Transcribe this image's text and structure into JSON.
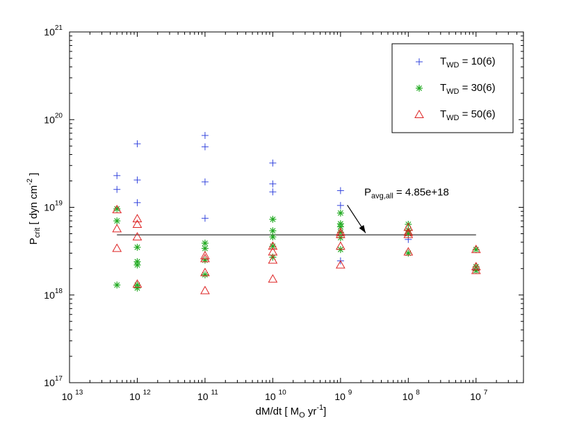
{
  "chart_data": {
    "type": "scatter",
    "xlabel_parts": {
      "pre": "dM/dt [ M",
      "sub": "O",
      "mid": " yr",
      "sup": "-1",
      "post": "]"
    },
    "ylabel_parts": {
      "pre": "P",
      "sub": "crit",
      "mid": " [ dyn cm",
      "sup": "-2",
      "post": " ]"
    },
    "x_axis": {
      "scale": "log",
      "reversed": true,
      "range_exp": [
        -13,
        -6.3
      ],
      "tick_exps": [
        13,
        12,
        11,
        10,
        9,
        8,
        7
      ]
    },
    "y_axis": {
      "scale": "log",
      "range_exp": [
        17,
        21
      ],
      "tick_exps": [
        17,
        18,
        19,
        20,
        21
      ]
    },
    "tick_base": "10",
    "series": [
      {
        "name": "T_WD = 10(6)",
        "label_parts": {
          "pre": "T",
          "sub": "WD",
          "post": " = 10(6)"
        },
        "marker": "plus",
        "color": "#3344dd",
        "points": [
          [
            -12.3,
            2.3e+19
          ],
          [
            -12.3,
            1.6e+19
          ],
          [
            -12,
            5.3e+19
          ],
          [
            -12,
            2.05e+19
          ],
          [
            -12,
            1.13e+19
          ],
          [
            -11,
            6.6e+19
          ],
          [
            -11,
            4.9e+19
          ],
          [
            -11,
            1.95e+19
          ],
          [
            -11,
            7.5e+18
          ],
          [
            -10,
            3.2e+19
          ],
          [
            -10,
            1.85e+19
          ],
          [
            -10,
            1.5e+19
          ],
          [
            -9,
            1.55e+19
          ],
          [
            -9,
            1.05e+19
          ],
          [
            -9,
            2.45e+18
          ],
          [
            -8,
            4.3e+18
          ],
          [
            -7,
            1.95e+18
          ]
        ]
      },
      {
        "name": "T_WD = 30(6)",
        "label_parts": {
          "pre": "T",
          "sub": "WD",
          "post": " = 30(6)"
        },
        "marker": "star",
        "color": "#22aa22",
        "points": [
          [
            -12.3,
            9.6e+18
          ],
          [
            -12.3,
            7e+18
          ],
          [
            -12.3,
            1.3e+18
          ],
          [
            -12,
            3.5e+18
          ],
          [
            -12,
            2.4e+18
          ],
          [
            -12,
            2.2e+18
          ],
          [
            -12,
            1.3e+18
          ],
          [
            -12,
            1.2e+18
          ],
          [
            -11,
            3.9e+18
          ],
          [
            -11,
            3.4e+18
          ],
          [
            -11,
            2.5e+18
          ],
          [
            -11,
            1.7e+18
          ],
          [
            -10,
            7.3e+18
          ],
          [
            -10,
            5.4e+18
          ],
          [
            -10,
            4.6e+18
          ],
          [
            -10,
            3.6e+18
          ],
          [
            -10,
            2.7e+18
          ],
          [
            -9,
            8.6e+18
          ],
          [
            -9,
            6.5e+18
          ],
          [
            -9,
            6e+18
          ],
          [
            -9,
            5.2e+18
          ],
          [
            -9,
            4.5e+18
          ],
          [
            -9,
            3.3e+18
          ],
          [
            -8,
            6.4e+18
          ],
          [
            -8,
            5.5e+18
          ],
          [
            -8,
            5e+18
          ],
          [
            -8,
            3e+18
          ],
          [
            -7,
            3.3e+18
          ],
          [
            -7,
            2.1e+18
          ],
          [
            -7,
            1.9e+18
          ]
        ]
      },
      {
        "name": "T_WD = 50(6)",
        "label_parts": {
          "pre": "T",
          "sub": "WD",
          "post": " = 50(6)"
        },
        "marker": "triangle",
        "color": "#dd2222",
        "points": [
          [
            -12.3,
            9.4e+18
          ],
          [
            -12.3,
            5.7e+18
          ],
          [
            -12.3,
            3.4e+18
          ],
          [
            -12,
            7.4e+18
          ],
          [
            -12,
            6.4e+18
          ],
          [
            -12,
            4.6e+18
          ],
          [
            -12,
            1.33e+18
          ],
          [
            -11,
            2.8e+18
          ],
          [
            -11,
            2.6e+18
          ],
          [
            -11,
            1.8e+18
          ],
          [
            -11,
            1.12e+18
          ],
          [
            -10,
            3.6e+18
          ],
          [
            -10,
            3.1e+18
          ],
          [
            -10,
            2.5e+18
          ],
          [
            -10,
            1.52e+18
          ],
          [
            -9,
            5.2e+18
          ],
          [
            -9,
            4.9e+18
          ],
          [
            -9,
            3.6e+18
          ],
          [
            -9,
            2.2e+18
          ],
          [
            -8,
            5.9e+18
          ],
          [
            -8,
            5.2e+18
          ],
          [
            -8,
            4.9e+18
          ],
          [
            -8,
            3.1e+18
          ],
          [
            -7,
            3.3e+18
          ],
          [
            -7,
            2.1e+18
          ],
          [
            -7,
            1.9e+18
          ]
        ]
      }
    ],
    "reference_line": {
      "value": 4.85e+18,
      "x_from": -12.3,
      "x_to": -7
    },
    "annotation": {
      "parts": {
        "pre": "P",
        "sub": "avg,all",
        "post": " = 4.85e+18"
      },
      "text_at": [
        -8.65,
        1.36e+19
      ],
      "arrow_from": [
        -8.9,
        1.06e+19
      ],
      "arrow_to": [
        -8.63,
        5.1e+18
      ]
    },
    "legend": {
      "position": "top-right"
    }
  }
}
